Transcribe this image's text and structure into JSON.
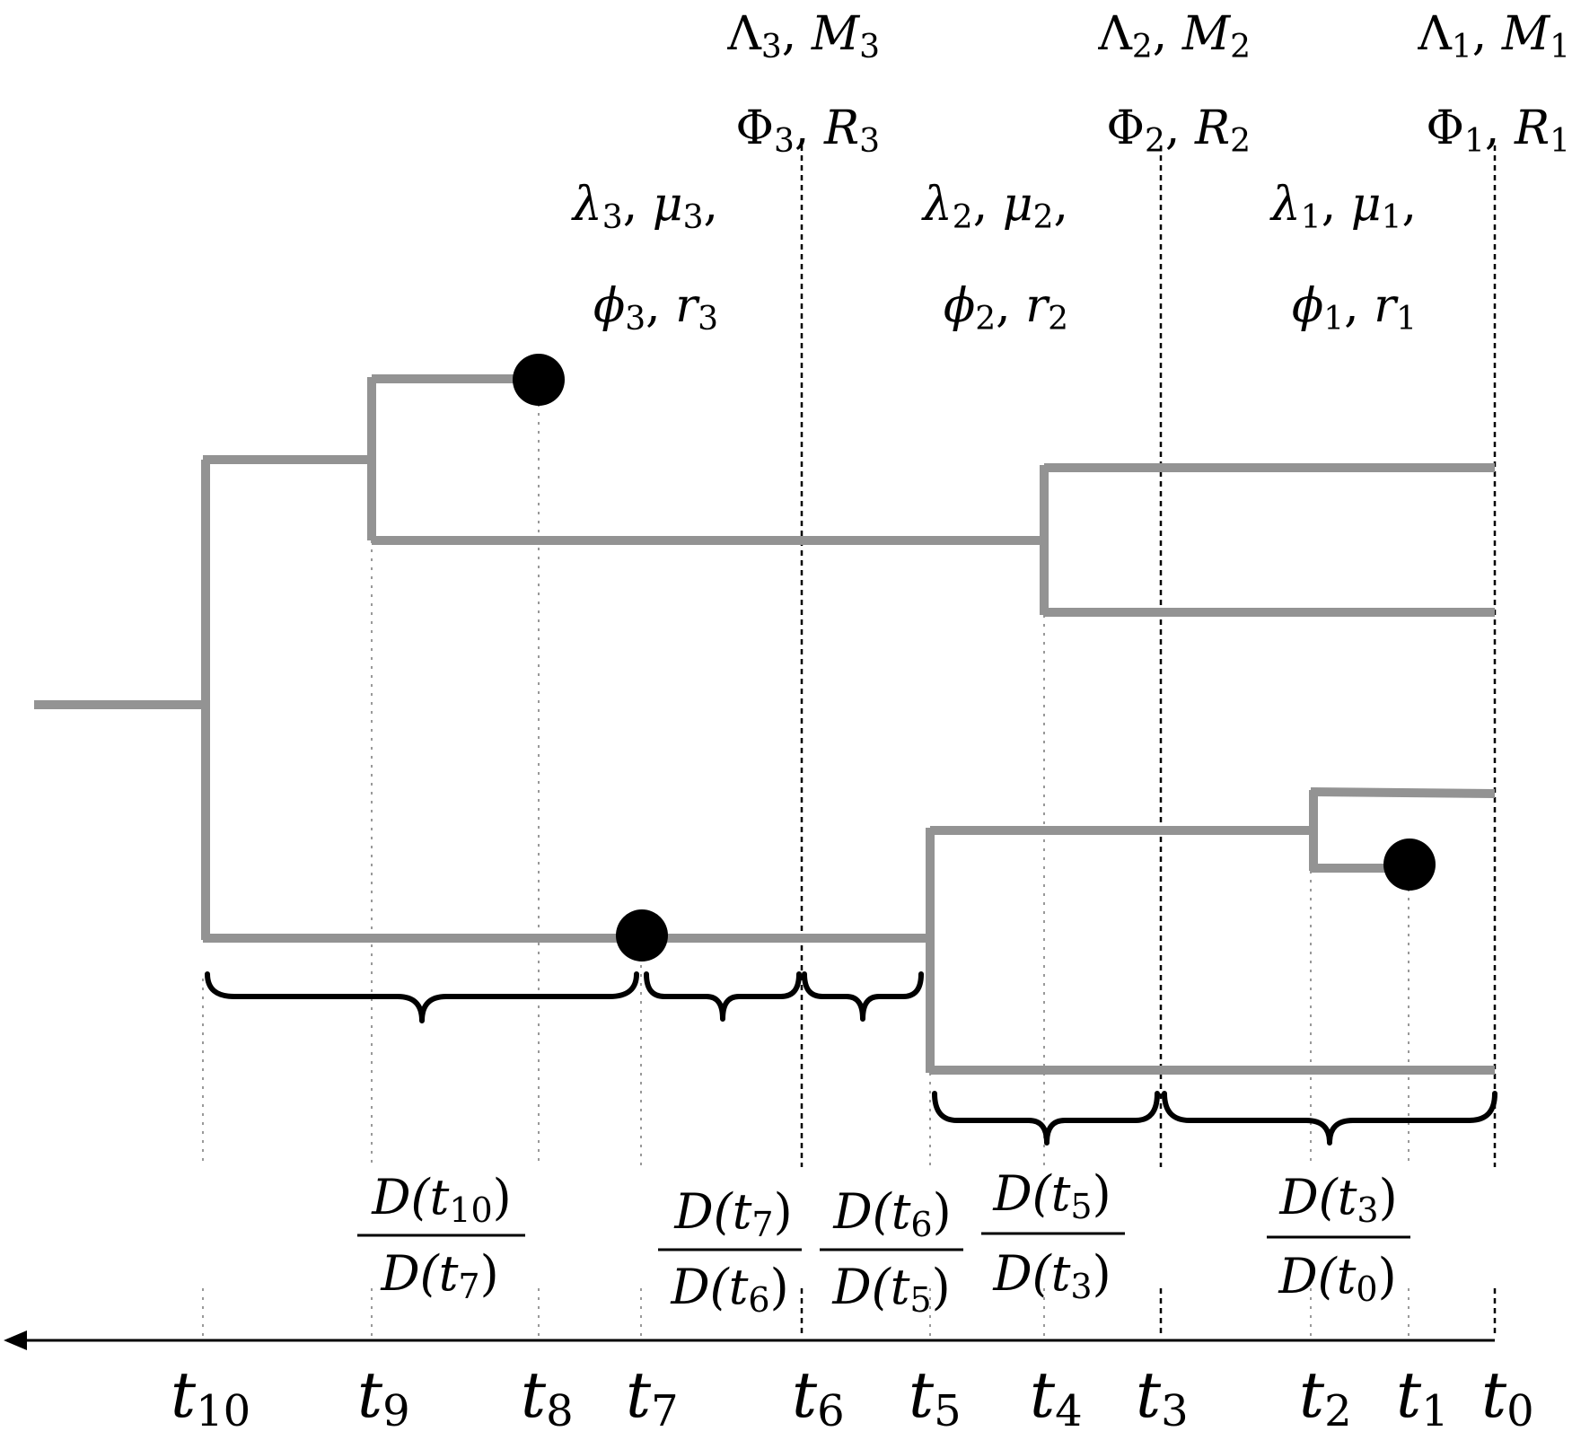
{
  "time_labels": [
    {
      "base": "t",
      "sub": "10"
    },
    {
      "base": "t",
      "sub": "9"
    },
    {
      "base": "t",
      "sub": "8"
    },
    {
      "base": "t",
      "sub": "7"
    },
    {
      "base": "t",
      "sub": "6"
    },
    {
      "base": "t",
      "sub": "5"
    },
    {
      "base": "t",
      "sub": "4"
    },
    {
      "base": "t",
      "sub": "3"
    },
    {
      "base": "t",
      "sub": "2"
    },
    {
      "base": "t",
      "sub": "1"
    },
    {
      "base": "t",
      "sub": "0"
    }
  ],
  "epochs": [
    {
      "upper1": {
        "a": "Λ",
        "a_sub": "3",
        "sep": ", ",
        "b": "M",
        "b_sub": "3"
      },
      "upper2": {
        "a": "Φ",
        "a_sub": "3",
        "sep": ", ",
        "b": "R",
        "b_sub": "3"
      },
      "lower1": {
        "a": "λ",
        "a_sub": "3",
        "sep": ", ",
        "b": "μ",
        "b_sub": "3",
        "trail": ","
      },
      "lower2": {
        "a": "ϕ",
        "a_sub": "3",
        "sep": ", ",
        "b": "r",
        "b_sub": "3"
      }
    },
    {
      "upper1": {
        "a": "Λ",
        "a_sub": "2",
        "sep": ", ",
        "b": "M",
        "b_sub": "2"
      },
      "upper2": {
        "a": "Φ",
        "a_sub": "2",
        "sep": ", ",
        "b": "R",
        "b_sub": "2"
      },
      "lower1": {
        "a": "λ",
        "a_sub": "2",
        "sep": ", ",
        "b": "μ",
        "b_sub": "2",
        "trail": ","
      },
      "lower2": {
        "a": "ϕ",
        "a_sub": "2",
        "sep": ", ",
        "b": "r",
        "b_sub": "2"
      }
    },
    {
      "upper1": {
        "a": "Λ",
        "a_sub": "1",
        "sep": ", ",
        "b": "M",
        "b_sub": "1"
      },
      "upper2": {
        "a": "Φ",
        "a_sub": "1",
        "sep": ", ",
        "b": "R",
        "b_sub": "1"
      },
      "lower1": {
        "a": "λ",
        "a_sub": "1",
        "sep": ", ",
        "b": "μ",
        "b_sub": "1",
        "trail": ","
      },
      "lower2": {
        "a": "ϕ",
        "a_sub": "1",
        "sep": ", ",
        "b": "r",
        "b_sub": "1"
      }
    }
  ],
  "fractions": [
    {
      "num": {
        "f": "D(",
        "v": "t",
        "sub": "10",
        "close": ")"
      },
      "den": {
        "f": "D(",
        "v": "t",
        "sub": "7",
        "close": ")"
      }
    },
    {
      "num": {
        "f": "D(",
        "v": "t",
        "sub": "7",
        "close": ")"
      },
      "den": {
        "f": "D(",
        "v": "t",
        "sub": "6",
        "close": ")"
      }
    },
    {
      "num": {
        "f": "D(",
        "v": "t",
        "sub": "6",
        "close": ")"
      },
      "den": {
        "f": "D(",
        "v": "t",
        "sub": "5",
        "close": ")"
      }
    },
    {
      "num": {
        "f": "D(",
        "v": "t",
        "sub": "5",
        "close": ")"
      },
      "den": {
        "f": "D(",
        "v": "t",
        "sub": "3",
        "close": ")"
      }
    },
    {
      "num": {
        "f": "D(",
        "v": "t",
        "sub": "3",
        "close": ")"
      },
      "den": {
        "f": "D(",
        "v": "t",
        "sub": "0",
        "close": ")"
      }
    }
  ],
  "colors": {
    "branch": "#939393",
    "sample": "#000000",
    "ink": "#000000"
  },
  "icons": {
    "axis_arrow": "arrow-left-icon",
    "sampled_ancestor": "filled-circle-icon"
  }
}
